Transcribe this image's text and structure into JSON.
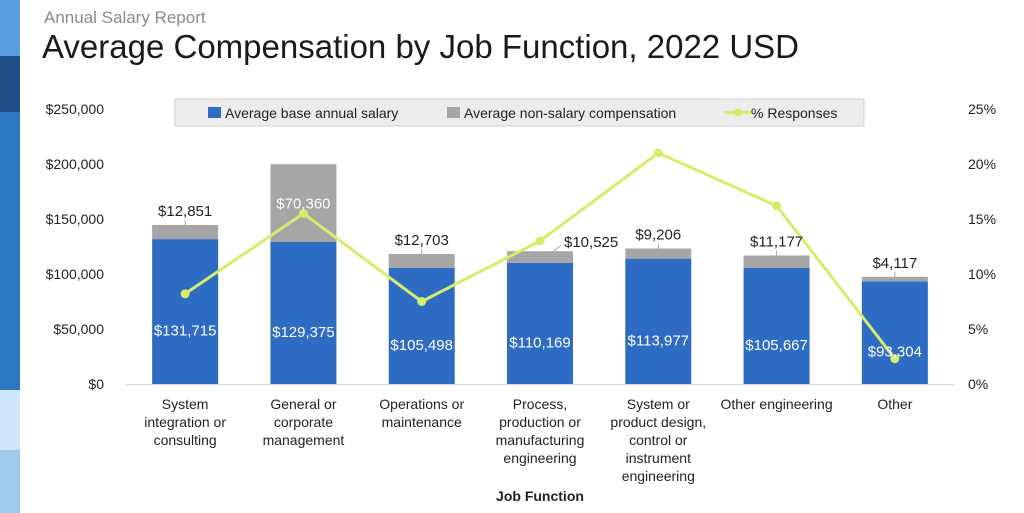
{
  "header": {
    "supertitle": "Annual Salary Report",
    "title": "Average Compensation by Job Function, 2022 USD"
  },
  "colors": {
    "base": "#2e6cc4",
    "non_salary": "#a6a6a6",
    "responses": "#d6ec6a",
    "strip": [
      "#5b9fe0",
      "#1f4e85",
      "#2e75c0",
      "#cfe6f8",
      "#9fcbef"
    ]
  },
  "chart_data": {
    "type": "bar",
    "stacked": true,
    "categories": [
      [
        "System",
        "integration or",
        "consulting"
      ],
      [
        "General or",
        "corporate",
        "management"
      ],
      [
        "Operations or",
        "maintenance"
      ],
      [
        "Process,",
        "production or",
        "manufacturing",
        "engineering"
      ],
      [
        "System or",
        "product design,",
        "control or",
        "instrument",
        "engineering"
      ],
      [
        "Other engineering"
      ],
      [
        "Other"
      ]
    ],
    "series": [
      {
        "name": "Average base annual salary",
        "type": "bar",
        "axis": "left",
        "values": [
          131715,
          129375,
          105498,
          110169,
          113977,
          105667,
          93304
        ],
        "labels": [
          "$131,715",
          "$129,375",
          "$105,498",
          "$110,169",
          "$113,977",
          "$105,667",
          "$93,304"
        ]
      },
      {
        "name": "Average non-salary compensation",
        "type": "bar",
        "axis": "left",
        "values": [
          12851,
          70360,
          12703,
          10525,
          9206,
          11177,
          4117
        ],
        "labels": [
          "$12,851",
          "$70,360",
          "$12,703",
          "$10,525",
          "$9,206",
          "$11,177",
          "$4,117"
        ]
      },
      {
        "name": "% Responses",
        "type": "line",
        "axis": "right",
        "values": [
          8.2,
          15.5,
          7.5,
          13.0,
          21.0,
          16.2,
          2.3
        ]
      }
    ],
    "xlabel": "Job Function",
    "y_left": {
      "min": 0,
      "max": 250000,
      "ticks": [
        "$0",
        "$50,000",
        "$100,000",
        "$150,000",
        "$200,000",
        "$250,000"
      ]
    },
    "y_right": {
      "min": 0,
      "max": 25,
      "ticks": [
        "0%",
        "5%",
        "10%",
        "15%",
        "20%",
        "25%"
      ]
    },
    "grid": false,
    "legend_position": "top"
  }
}
